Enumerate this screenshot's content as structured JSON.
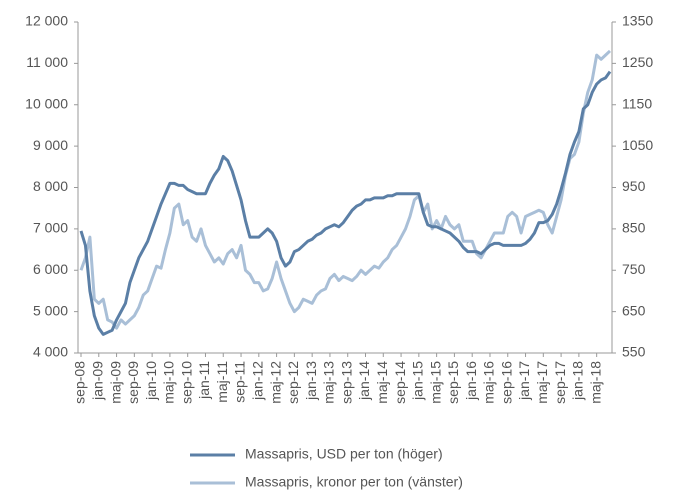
{
  "chart_data": {
    "type": "line",
    "categories": [
      "sep-08",
      null,
      null,
      null,
      "jan-09",
      null,
      null,
      null,
      "maj-09",
      null,
      null,
      null,
      "sep-09",
      null,
      null,
      null,
      "jan-10",
      null,
      null,
      null,
      "maj-10",
      null,
      null,
      null,
      "sep-10",
      null,
      null,
      null,
      "jan-11",
      null,
      null,
      null,
      "maj-11",
      null,
      null,
      null,
      "sep-11",
      null,
      null,
      null,
      "jan-12",
      null,
      null,
      null,
      "maj-12",
      null,
      null,
      null,
      "sep-12",
      null,
      null,
      null,
      "jan-13",
      null,
      null,
      null,
      "maj-13",
      null,
      null,
      null,
      "sep-13",
      null,
      null,
      null,
      "jan-14",
      null,
      null,
      null,
      "maj-14",
      null,
      null,
      null,
      "sep-14",
      null,
      null,
      null,
      "jan-15",
      null,
      null,
      null,
      "maj-15",
      null,
      null,
      null,
      "sep-15",
      null,
      null,
      null,
      "jan-16",
      null,
      null,
      null,
      "maj-16",
      null,
      null,
      null,
      "sep-16",
      null,
      null,
      null,
      "jan-17",
      null,
      null,
      null,
      "maj-17",
      null,
      null,
      null,
      "sep-17",
      null,
      null,
      null,
      "jan-18",
      null,
      null,
      null,
      "maj-18",
      null,
      null,
      null
    ],
    "series": [
      {
        "name": "Massapris, USD per ton (höger)",
        "color": "#5b7fa6",
        "axis": "y2",
        "values": [
          845,
          810,
          700,
          640,
          610,
          595,
          600,
          605,
          630,
          650,
          670,
          720,
          750,
          780,
          800,
          820,
          850,
          880,
          910,
          935,
          960,
          960,
          955,
          955,
          945,
          940,
          935,
          935,
          935,
          960,
          980,
          995,
          1025,
          1015,
          990,
          955,
          920,
          870,
          830,
          830,
          830,
          840,
          850,
          840,
          820,
          780,
          760,
          770,
          795,
          800,
          810,
          820,
          825,
          835,
          840,
          850,
          855,
          860,
          855,
          865,
          880,
          895,
          905,
          910,
          920,
          920,
          925,
          925,
          925,
          930,
          930,
          935,
          935,
          935,
          935,
          935,
          935,
          890,
          860,
          855,
          855,
          850,
          845,
          840,
          830,
          820,
          805,
          795,
          795,
          795,
          790,
          800,
          810,
          815,
          815,
          810,
          810,
          810,
          810,
          810,
          815,
          825,
          840,
          865,
          865,
          870,
          885,
          910,
          945,
          985,
          1030,
          1060,
          1085,
          1140,
          1150,
          1180,
          1200,
          1210,
          1215,
          1230
        ]
      },
      {
        "name": "Massapris, kronor per ton (vänster)",
        "color": "#a9bfd7",
        "values": [
          6000,
          6300,
          6800,
          5300,
          5200,
          5300,
          4800,
          4750,
          4600,
          4800,
          4700,
          4800,
          4900,
          5100,
          5400,
          5500,
          5800,
          6100,
          6050,
          6500,
          6900,
          7500,
          7600,
          7100,
          7200,
          6800,
          6700,
          7000,
          6600,
          6400,
          6200,
          6300,
          6150,
          6400,
          6500,
          6300,
          6600,
          6000,
          5900,
          5700,
          5700,
          5500,
          5550,
          5800,
          6200,
          5800,
          5500,
          5200,
          5000,
          5100,
          5300,
          5250,
          5200,
          5400,
          5500,
          5550,
          5800,
          5900,
          5750,
          5850,
          5800,
          5750,
          5850,
          6000,
          5900,
          6000,
          6100,
          6050,
          6200,
          6300,
          6500,
          6600,
          6800,
          7000,
          7300,
          7700,
          7800,
          7400,
          7600,
          7000,
          7200,
          7000,
          7300,
          7100,
          7000,
          7100,
          6700,
          6700,
          6700,
          6400,
          6300,
          6500,
          6700,
          6900,
          6900,
          6900,
          7300,
          7400,
          7300,
          6900,
          7300,
          7350,
          7400,
          7450,
          7400,
          7100,
          6900,
          7300,
          7700,
          8300,
          8700,
          8800,
          9100,
          9800,
          10300,
          10600,
          11200,
          11100,
          11200,
          11300
        ]
      }
    ],
    "ylim": [
      4000,
      12000
    ],
    "yticks": [
      {
        "value": 4000,
        "label": "4 000"
      },
      {
        "value": 5000,
        "label": "5 000"
      },
      {
        "value": 6000,
        "label": "6 000"
      },
      {
        "value": 7000,
        "label": "7 000"
      },
      {
        "value": 8000,
        "label": "8 000"
      },
      {
        "value": 9000,
        "label": "9 000"
      },
      {
        "value": 10000,
        "label": "10 000"
      },
      {
        "value": 11000,
        "label": "11 000"
      },
      {
        "value": 12000,
        "label": "12 000"
      }
    ],
    "y2lim": [
      550,
      1350
    ],
    "y2ticks": [
      550,
      650,
      750,
      850,
      950,
      1050,
      1150,
      1250,
      1350
    ],
    "grid": false,
    "legend": "bottom"
  }
}
